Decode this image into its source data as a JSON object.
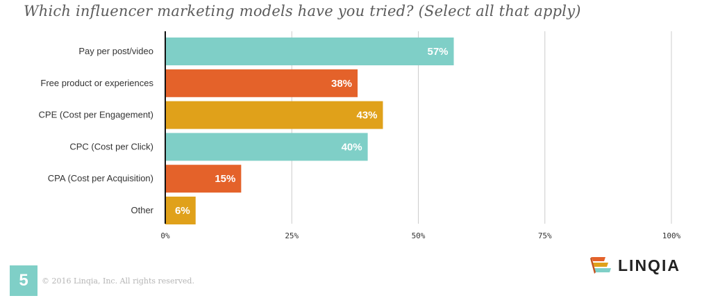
{
  "title": "Which influencer marketing models have you tried? (Select all that apply)",
  "footer": {
    "page_number": "5",
    "copyright": "© 2016 Linqia, Inc. All rights reserved.",
    "brand": "LINQIA"
  },
  "colors": {
    "teal": "#7fcfc7",
    "orange": "#e4622a",
    "gold": "#e0a11a",
    "grid": "#cccccc",
    "axis": "#111111"
  },
  "chart_data": {
    "type": "bar",
    "orientation": "horizontal",
    "title": "Which influencer marketing models have you tried? (Select all that apply)",
    "xlabel": "",
    "ylabel": "",
    "xlim": [
      0,
      100
    ],
    "ticks": [
      "0%",
      "25%",
      "50%",
      "75%",
      "100%"
    ],
    "grid": true,
    "categories": [
      "Pay per post/video",
      "Free product or experiences",
      "CPE (Cost per Engagement)",
      "CPC (Cost per Click)",
      "CPA (Cost per Acquisition)",
      "Other"
    ],
    "values": [
      57,
      38,
      43,
      40,
      15,
      6
    ],
    "labels": [
      "57%",
      "38%",
      "43%",
      "40%",
      "15%",
      "6%"
    ],
    "bar_colors": [
      "#7fcfc7",
      "#e4622a",
      "#e0a11a",
      "#7fcfc7",
      "#e4622a",
      "#e0a11a"
    ]
  }
}
